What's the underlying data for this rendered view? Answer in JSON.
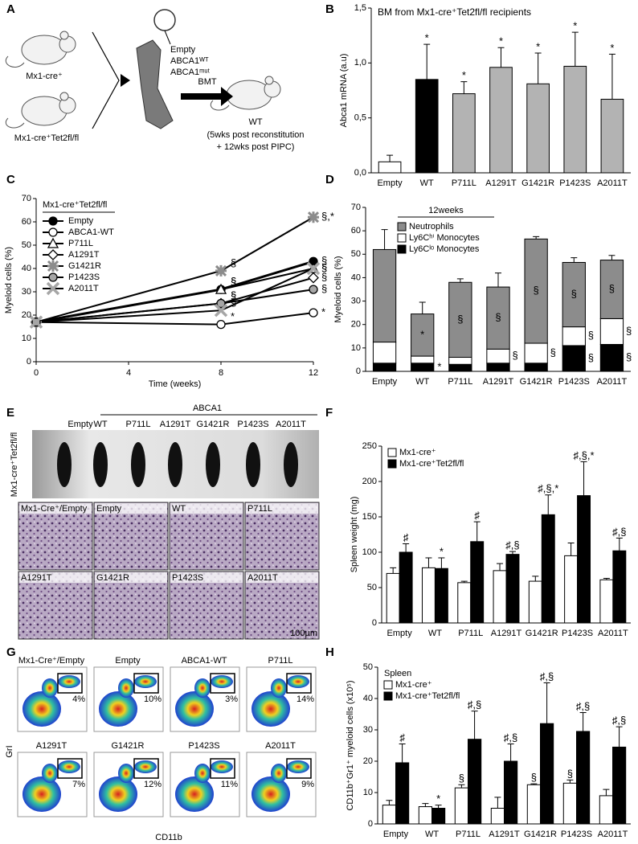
{
  "panel_labels": [
    "A",
    "B",
    "C",
    "D",
    "E",
    "F",
    "G",
    "H"
  ],
  "panel_a": {
    "mouse1": "Mx1-cre⁺",
    "mouse2": "Mx1-cre⁺Tet2fl/fl",
    "vectors": [
      "Empty",
      "ABCA1ᵂᵀ",
      "ABCA1ᵐᵘᵗ"
    ],
    "bmt": "BMT",
    "recipient": "WT",
    "note": [
      "(5wks post reconstitution",
      "+ 12wks post PIPC)"
    ]
  },
  "panel_e": {
    "empty": "Empty",
    "group": "ABCA1",
    "columns": [
      "WT",
      "P711L",
      "A1291T",
      "G1421R",
      "P1423S",
      "A2011T"
    ],
    "genotype": "Mx1-cre⁺Tet2fl/fl",
    "histology": [
      "Mx1-Cre⁺/Empty",
      "Empty",
      "WT",
      "P711L",
      "A1291T",
      "G1421R",
      "P1423S",
      "A2011T"
    ],
    "scale": "100µm"
  },
  "panel_g": {
    "plots": [
      "Mx1-Cre⁺/Empty",
      "Empty",
      "ABCA1-WT",
      "P711L",
      "A1291T",
      "G1421R",
      "P1423S",
      "A2011T"
    ],
    "gates": [
      "4%",
      "10%",
      "3%",
      "14%",
      "7%",
      "12%",
      "11%",
      "9%"
    ],
    "xlabel": "CD11b",
    "ylabel": "GrI"
  },
  "chart_data": [
    {
      "type": "bar",
      "title": "BM from Mx1-cre⁺Tet2fl/fl recipients",
      "ylabel": "Abca1 mRNA (a.u)",
      "categories": [
        "Empty",
        "WT",
        "P711L",
        "A1291T",
        "G1421R",
        "P1423S",
        "A2011T"
      ],
      "series": [
        {
          "values": [
            0.1,
            0.85,
            0.72,
            0.96,
            0.81,
            0.97,
            0.67
          ],
          "errors": [
            0.06,
            0.32,
            0.11,
            0.18,
            0.28,
            0.31,
            0.41
          ],
          "colors": [
            "#ffffff",
            "#000000",
            "#b3b3b3",
            "#b3b3b3",
            "#b3b3b3",
            "#b3b3b3",
            "#b3b3b3"
          ],
          "annotations": [
            null,
            "*",
            "*",
            "*",
            "*",
            "*",
            "*"
          ]
        }
      ],
      "ylim": [
        0,
        1.5
      ],
      "yticks": [
        {
          "value": 0,
          "label": "0,0"
        },
        {
          "value": 0.5,
          "label": "0,5"
        },
        {
          "value": 1,
          "label": "1,0"
        },
        {
          "value": 1.5,
          "label": "1,5"
        }
      ]
    },
    {
      "type": "line",
      "legend_title": "Mx1-cre⁺Tet2fl/fl",
      "xlabel": "Time (weeks)",
      "ylabel": "Myeloid cells (%)",
      "x": [
        0,
        8,
        12
      ],
      "xlim": [
        0,
        12
      ],
      "xticks": [
        0,
        4,
        8,
        12
      ],
      "ylim": [
        0,
        70
      ],
      "yticks": [
        0,
        10,
        20,
        30,
        40,
        50,
        60,
        70
      ],
      "legend": "top-left",
      "series": [
        {
          "name": "Empty",
          "color": "#000000",
          "marker": "circle",
          "fill": "#000000",
          "values": [
            17,
            31,
            43
          ],
          "annotations": [
            null,
            "§",
            "§"
          ]
        },
        {
          "name": "ABCA1-WT",
          "color": "#000000",
          "marker": "circle",
          "fill": "#ffffff",
          "values": [
            17,
            16,
            21
          ],
          "annotations": [
            null,
            "*",
            "*"
          ]
        },
        {
          "name": "P711L",
          "color": "#000000",
          "marker": "triangle",
          "fill": "#ffffff",
          "values": [
            17,
            31,
            40
          ],
          "annotations": [
            null,
            "§",
            "§"
          ]
        },
        {
          "name": "A1291T",
          "color": "#000000",
          "marker": "diamond",
          "fill": "#ffffff",
          "values": [
            17,
            25,
            36
          ],
          "annotations": [
            null,
            "§",
            "§"
          ]
        },
        {
          "name": "G1421R",
          "color": "#000000",
          "marker": "star",
          "fill": "#8c8c8c",
          "values": [
            17,
            39,
            62
          ],
          "annotations": [
            null,
            "§",
            "§,*"
          ]
        },
        {
          "name": "P1423S",
          "color": "#000000",
          "marker": "circle",
          "fill": "#a6a6a6",
          "values": [
            17,
            25,
            31
          ],
          "annotations": [
            null,
            "§",
            "§"
          ]
        },
        {
          "name": "A2011T",
          "color": "#000000",
          "marker": "x",
          "fill": "#a6a6a6",
          "values": [
            17,
            22,
            40
          ],
          "annotations": [
            null,
            "§",
            "§"
          ]
        }
      ]
    },
    {
      "type": "bar",
      "stacked": true,
      "subtitle": "12weeks",
      "ylabel": "Myeloid cells (%)",
      "categories": [
        "Empty",
        "WT",
        "P711L",
        "A1291T",
        "G1421R",
        "P1423S",
        "A2011T"
      ],
      "ylim": [
        0,
        70
      ],
      "yticks": [
        0,
        10,
        20,
        30,
        40,
        50,
        60,
        70
      ],
      "legend": "top-left",
      "series": [
        {
          "name": "Ly6Cˡᵒ Monocytes",
          "color": "#000000",
          "values": [
            3.5,
            3.5,
            3,
            3.5,
            3.5,
            11,
            11.5
          ],
          "annotations": [
            null,
            "*",
            null,
            null,
            null,
            "§",
            "§"
          ]
        },
        {
          "name": "Ly6Cʰⁱ Monocytes",
          "color": "#ffffff",
          "values": [
            9,
            3,
            3,
            6,
            8.5,
            8,
            11
          ],
          "annotations": [
            null,
            null,
            null,
            "§",
            "§",
            "§",
            "§"
          ]
        },
        {
          "name": "Neutrophils",
          "color": "#8c8c8c",
          "values": [
            39.5,
            18,
            32,
            26.5,
            44.5,
            27.5,
            25
          ],
          "errors": [
            8.5,
            5,
            1.5,
            6,
            1,
            2,
            2
          ],
          "annotations": [
            null,
            "*",
            "§",
            "§",
            "§",
            "§",
            "§"
          ]
        }
      ]
    },
    {
      "type": "bar",
      "ylabel": "Spleen weight (mg)",
      "categories": [
        "Empty",
        "WT",
        "P711L",
        "A1291T",
        "G1421R",
        "P1423S",
        "A2011T"
      ],
      "ylim": [
        0,
        250
      ],
      "yticks": [
        0,
        50,
        100,
        150,
        200,
        250
      ],
      "legend": "top-left",
      "series": [
        {
          "name": "Mx1-cre⁺",
          "color": "#ffffff",
          "values": [
            70,
            78,
            57,
            74,
            59,
            95,
            61
          ],
          "errors": [
            8,
            14,
            2,
            10,
            7,
            18,
            2
          ]
        },
        {
          "name": "Mx1-cre⁺Tet2fl/fl",
          "color": "#000000",
          "values": [
            100,
            77,
            115,
            97,
            153,
            180,
            102
          ],
          "errors": [
            12,
            15,
            28,
            4,
            28,
            48,
            18
          ],
          "annotations": [
            "♯",
            "*",
            "♯",
            "♯,§",
            "♯,§,*",
            "♯,§,*",
            "♯,§"
          ]
        }
      ]
    },
    {
      "type": "bar",
      "legend_title": "Spleen",
      "ylabel": "CD11b⁺Gr1⁺ myeloid cells (x10⁵)",
      "categories": [
        "Empty",
        "WT",
        "P711L",
        "A1291T",
        "G1421R",
        "P1423S",
        "A2011T"
      ],
      "ylim": [
        0,
        50
      ],
      "yticks": [
        0,
        10,
        20,
        30,
        40,
        50
      ],
      "legend": "top-left",
      "series": [
        {
          "name": "Mx1-cre⁺",
          "color": "#ffffff",
          "values": [
            6,
            5.5,
            11.5,
            5,
            12.5,
            13,
            9
          ],
          "errors": [
            1.5,
            1,
            1,
            3.5,
            0.3,
            1,
            2
          ],
          "annotations": [
            null,
            null,
            "§",
            null,
            "§",
            "§",
            null
          ]
        },
        {
          "name": "Mx1-cre⁺Tet2fl/fl",
          "color": "#000000",
          "values": [
            19.5,
            5,
            27,
            20,
            32,
            29.5,
            24.5
          ],
          "errors": [
            6,
            1,
            9,
            5.5,
            13,
            6,
            6.5
          ],
          "annotations": [
            "♯",
            "*",
            "♯,§",
            "♯,§",
            "♯,§",
            "♯,§",
            "♯,§"
          ]
        }
      ]
    }
  ]
}
